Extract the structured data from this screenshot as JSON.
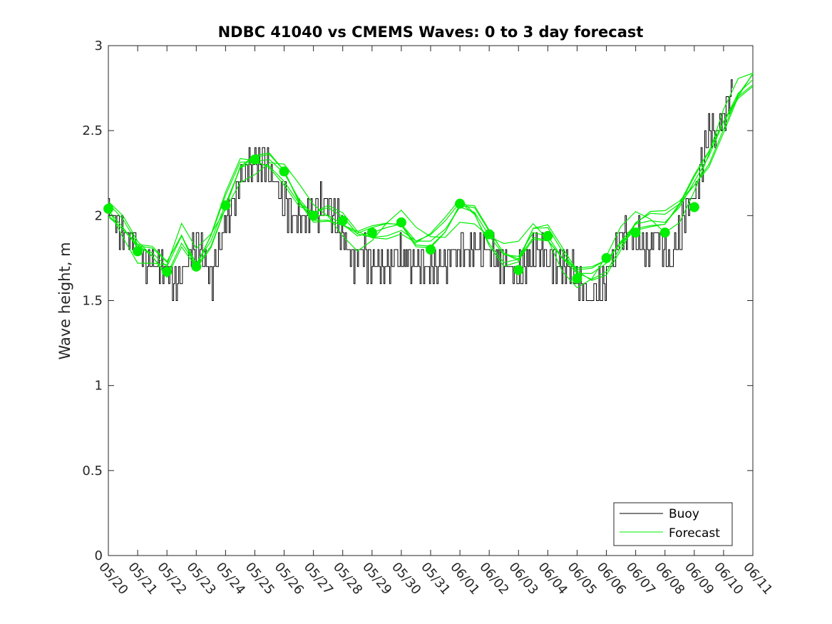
{
  "chart_data": {
    "type": "line",
    "title": "NDBC 41040 vs CMEMS Waves: 0 to 3 day forecast",
    "xlabel": "",
    "ylabel": "Wave height, m",
    "x_ticks": [
      "05/20",
      "05/21",
      "05/22",
      "05/23",
      "05/24",
      "05/25",
      "05/26",
      "05/27",
      "05/28",
      "05/29",
      "05/30",
      "05/31",
      "06/01",
      "06/02",
      "06/03",
      "06/04",
      "06/05",
      "06/06",
      "06/07",
      "06/08",
      "06/09",
      "06/10",
      "06/11"
    ],
    "y_ticks": [
      "0",
      "0.5",
      "1",
      "1.5",
      "2",
      "2.5",
      "3"
    ],
    "xlim_days": [
      0,
      22
    ],
    "ylim": [
      0,
      3
    ],
    "grid": false,
    "legend_position": "bottom-right",
    "colors": {
      "buoy": "#000000",
      "forecast": "#00ee00",
      "marker": "#00ee00"
    },
    "legend": [
      {
        "label": "Buoy",
        "color": "#000000"
      },
      {
        "label": "Forecast",
        "color": "#00ee00"
      }
    ],
    "buoy": {
      "name": "Buoy",
      "x_days": [
        0,
        0.5,
        0.9,
        1.2,
        1.5,
        1.9,
        2.1,
        2.4,
        2.7,
        3,
        3.3,
        3.5,
        3.8,
        4.2,
        4.6,
        5,
        5.3,
        5.6,
        5.9,
        6.2,
        6.6,
        7,
        7.4,
        7.7,
        8,
        8.3,
        8.7,
        9,
        9.4,
        9.8,
        10.2,
        10.6,
        11,
        11.3,
        11.7,
        12,
        12.4,
        12.8,
        13.2,
        13.6,
        13.9,
        14.2,
        14.6,
        15,
        15.4,
        15.8,
        16.1,
        16.4,
        16.7,
        17,
        17.4,
        17.8,
        18.1,
        18.4,
        18.7,
        19,
        19.2,
        19.5,
        19.8,
        20.1,
        20.4,
        20.7,
        21,
        21.3
      ],
      "y": [
        2.0,
        1.9,
        1.85,
        1.75,
        1.72,
        1.68,
        1.65,
        1.6,
        1.75,
        1.82,
        1.72,
        1.62,
        1.85,
        2.05,
        2.25,
        2.32,
        2.3,
        2.25,
        2.1,
        2.0,
        1.95,
        2.05,
        2.05,
        2.0,
        1.9,
        1.75,
        1.8,
        1.7,
        1.7,
        1.75,
        1.75,
        1.72,
        1.68,
        1.7,
        1.75,
        1.8,
        1.8,
        1.8,
        1.75,
        1.7,
        1.65,
        1.7,
        1.8,
        1.75,
        1.72,
        1.68,
        1.6,
        1.52,
        1.55,
        1.65,
        1.85,
        1.88,
        1.85,
        1.78,
        1.9,
        1.78,
        1.72,
        1.9,
        2.05,
        2.15,
        2.45,
        2.5,
        2.6,
        2.75
      ]
    },
    "forecast": {
      "name": "Forecast",
      "x_days": [
        0,
        0.5,
        1,
        1.5,
        2,
        2.5,
        3,
        3.5,
        4,
        4.5,
        5,
        5.5,
        6,
        6.5,
        7,
        7.5,
        8,
        8.5,
        9,
        9.5,
        10,
        10.5,
        11,
        11.5,
        12,
        12.5,
        13,
        13.5,
        14,
        14.5,
        15,
        15.5,
        16,
        16.5,
        17,
        17.5,
        18,
        18.5,
        19,
        19.5,
        20,
        20.5,
        21,
        21.5,
        22
      ],
      "y": [
        2.03,
        1.93,
        1.81,
        1.78,
        1.7,
        1.88,
        1.72,
        1.85,
        2.07,
        2.28,
        2.32,
        2.33,
        2.25,
        2.1,
        2.0,
        2.0,
        1.95,
        1.88,
        1.9,
        1.93,
        1.95,
        1.85,
        1.85,
        1.92,
        2.05,
        2.02,
        1.88,
        1.77,
        1.76,
        1.9,
        1.88,
        1.75,
        1.66,
        1.66,
        1.72,
        1.85,
        1.95,
        1.97,
        1.96,
        2.05,
        2.2,
        2.35,
        2.55,
        2.72,
        2.8
      ]
    },
    "forecast_markers": {
      "x_days": [
        0,
        1,
        2,
        3,
        4,
        5,
        6,
        7,
        8,
        9,
        10,
        11,
        12,
        13,
        14,
        15,
        16,
        17,
        18,
        19,
        20
      ],
      "y": [
        2.04,
        1.79,
        1.67,
        1.7,
        2.06,
        2.33,
        2.26,
        2.0,
        1.97,
        1.9,
        1.96,
        1.8,
        2.07,
        1.89,
        1.68,
        1.88,
        1.63,
        1.75,
        1.9,
        1.9,
        2.05
      ]
    }
  }
}
